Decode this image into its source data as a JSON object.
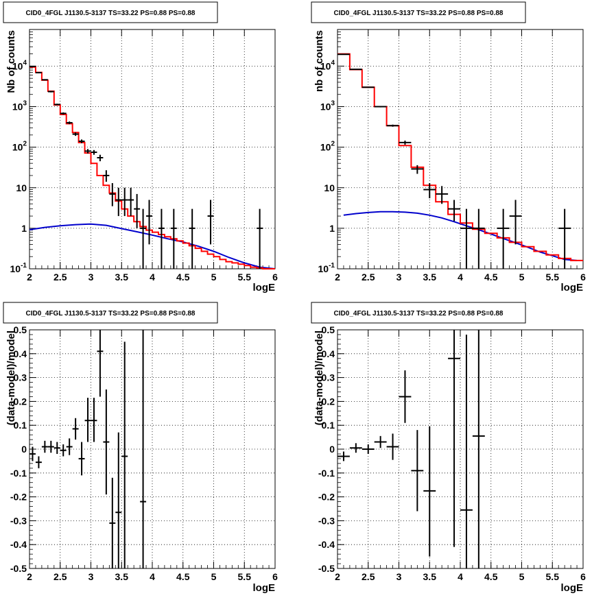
{
  "panels": {
    "tl": {
      "title": "CID0_4FGL J1130.5-3137 TS=33.22 PS=0.88 PS=0.88",
      "xlabel": "logE",
      "ylabel": "Nb of counts"
    },
    "tr": {
      "title": "CID0_4FGL J1130.5-3137 TS=33.22 PS=0.88 PS=0.88",
      "xlabel": "logE",
      "ylabel": "nb of counts"
    },
    "bl": {
      "title": "CID0_4FGL J1130.5-3137 TS=33.22 PS=0.88 PS=0.88",
      "xlabel": "logE",
      "ylabel": "(data-model)/model"
    },
    "br": {
      "title": "CID0_4FGL J1130.5-3137 TS=33.22 PS=0.88 PS=0.88",
      "xlabel": "logE",
      "ylabel": "(data-model)/model"
    }
  },
  "colors": {
    "data": "#000000",
    "model": "#ff0000",
    "background": "#0000cc",
    "grid": "#000000"
  },
  "chart_data": [
    {
      "id": "tl",
      "type": "line",
      "title": "CID0_4FGL J1130.5-3137 TS=33.22 PS=0.88 PS=0.88",
      "xlabel": "logE",
      "ylabel": "Nb of counts",
      "xlim": [
        2,
        6
      ],
      "ylim": [
        0.1,
        80000
      ],
      "ylog": true,
      "grid": true,
      "xticks": [
        2,
        2.5,
        3,
        3.5,
        4,
        4.5,
        5,
        5.5,
        6
      ],
      "yticks": [
        {
          "v": 0.1,
          "base": "10",
          "exp": "-1"
        },
        {
          "v": 1,
          "label": "1"
        },
        {
          "v": 10,
          "label": "10"
        },
        {
          "v": 100,
          "base": "10",
          "exp": "2"
        },
        {
          "v": 1000,
          "base": "10",
          "exp": "3"
        },
        {
          "v": 10000,
          "base": "10",
          "exp": "4"
        }
      ],
      "binwidth": 0.1,
      "model_x": [
        2.05,
        2.15,
        2.25,
        2.35,
        2.45,
        2.55,
        2.65,
        2.75,
        2.85,
        2.95,
        3.05,
        3.15,
        3.25,
        3.35,
        3.45,
        3.55,
        3.65,
        3.75,
        3.85,
        3.95,
        4.05,
        4.15,
        4.25,
        4.35,
        4.45,
        4.55,
        4.65,
        4.75,
        4.85,
        4.95,
        5.05,
        5.15,
        5.25,
        5.35,
        5.45,
        5.55,
        5.65,
        5.75,
        5.85,
        5.95
      ],
      "model": [
        9500,
        7000,
        4500,
        2400,
        1100,
        640,
        380,
        230,
        130,
        72,
        40,
        20,
        11.5,
        7.4,
        4.7,
        3.0,
        2.0,
        1.45,
        1.1,
        0.9,
        0.8,
        0.7,
        0.62,
        0.55,
        0.49,
        0.43,
        0.37,
        0.32,
        0.27,
        0.23,
        0.2,
        0.17,
        0.15,
        0.14,
        0.13,
        0.12,
        0.11,
        0.105,
        0.1,
        0.1
      ],
      "background_x": [
        2.0,
        2.25,
        2.5,
        2.75,
        3.0,
        3.25,
        3.5,
        3.75,
        4.0,
        4.25,
        4.5,
        4.75,
        5.0,
        5.25,
        5.5,
        5.75,
        6.0
      ],
      "background": [
        0.92,
        1.05,
        1.15,
        1.23,
        1.27,
        1.18,
        0.98,
        0.82,
        0.68,
        0.55,
        0.46,
        0.36,
        0.27,
        0.19,
        0.14,
        0.11,
        0.1
      ],
      "data_x": [
        2.05,
        2.15,
        2.25,
        2.35,
        2.45,
        2.55,
        2.65,
        2.75,
        2.85,
        2.95,
        3.05,
        3.15,
        3.25,
        3.35,
        3.45,
        3.55,
        3.65,
        3.75,
        3.85,
        3.95,
        4.15,
        4.35,
        4.65,
        4.95,
        5.75
      ],
      "data": [
        9800,
        6900,
        4600,
        2350,
        1130,
        680,
        400,
        210,
        140,
        80,
        75,
        55,
        20,
        7,
        5,
        5,
        5,
        3,
        1,
        2,
        1,
        1,
        1,
        2,
        1
      ],
      "data_low": [
        9600,
        6700,
        4450,
        2250,
        1080,
        640,
        370,
        190,
        125,
        70,
        65,
        45,
        14,
        3.5,
        2,
        2,
        2,
        1,
        0.1,
        0.4,
        0.1,
        0.1,
        0.1,
        0.4,
        0.1
      ],
      "data_high": [
        10000,
        7100,
        4750,
        2450,
        1180,
        720,
        430,
        230,
        155,
        90,
        85,
        65,
        27,
        13,
        10,
        10,
        10,
        7,
        3,
        5,
        3,
        3,
        3,
        5,
        3
      ]
    },
    {
      "id": "tr",
      "type": "line",
      "title": "CID0_4FGL J1130.5-3137 TS=33.22 PS=0.88 PS=0.88",
      "xlabel": "logE",
      "ylabel": "nb of counts",
      "xlim": [
        2,
        6
      ],
      "ylim": [
        0.1,
        80000
      ],
      "ylog": true,
      "grid": true,
      "xticks": [
        2,
        2.5,
        3,
        3.5,
        4,
        4.5,
        5,
        5.5,
        6
      ],
      "yticks": [
        {
          "v": 0.1,
          "base": "10",
          "exp": "-1"
        },
        {
          "v": 1,
          "label": "1"
        },
        {
          "v": 10,
          "label": "10"
        },
        {
          "v": 100,
          "base": "10",
          "exp": "2"
        },
        {
          "v": 1000,
          "base": "10",
          "exp": "3"
        },
        {
          "v": 10000,
          "base": "10",
          "exp": "4"
        }
      ],
      "binwidth": 0.2,
      "model_x": [
        2.1,
        2.3,
        2.5,
        2.7,
        2.9,
        3.1,
        3.3,
        3.5,
        3.7,
        3.9,
        4.1,
        4.3,
        4.5,
        4.7,
        4.9,
        5.1,
        5.3,
        5.5,
        5.7,
        5.9
      ],
      "model": [
        20000,
        8200,
        3000,
        1000,
        340,
        110,
        32,
        11.5,
        4.5,
        2.2,
        1.35,
        0.95,
        0.75,
        0.58,
        0.45,
        0.35,
        0.27,
        0.22,
        0.18,
        0.16
      ],
      "background_x": [
        2.1,
        2.3,
        2.5,
        2.7,
        2.9,
        3.1,
        3.3,
        3.5,
        3.7,
        3.9,
        4.1,
        4.3,
        4.5,
        4.7,
        4.9,
        5.1,
        5.3,
        5.5,
        5.7,
        5.9
      ],
      "background": [
        2.1,
        2.3,
        2.45,
        2.55,
        2.55,
        2.5,
        2.35,
        2.1,
        1.8,
        1.45,
        1.15,
        0.92,
        0.72,
        0.56,
        0.44,
        0.34,
        0.26,
        0.21,
        0.17,
        0.16
      ],
      "data_x": [
        2.1,
        2.3,
        2.5,
        2.7,
        2.9,
        3.1,
        3.3,
        3.5,
        3.7,
        3.9,
        4.1,
        4.3,
        4.7,
        4.9,
        5.7
      ],
      "data": [
        19500,
        8300,
        3000,
        1000,
        340,
        130,
        29,
        9,
        7,
        3,
        1,
        1,
        1,
        2,
        1
      ],
      "data_low": [
        19200,
        8100,
        2900,
        960,
        320,
        115,
        22,
        5.5,
        4,
        1.5,
        0.1,
        0.1,
        0.1,
        0.4,
        0.1
      ],
      "data_high": [
        19800,
        8500,
        3100,
        1040,
        360,
        145,
        36,
        13,
        11,
        5,
        3,
        3,
        3,
        5,
        3
      ]
    },
    {
      "id": "bl",
      "type": "scatter",
      "title": "CID0_4FGL J1130.5-3137 TS=33.22 PS=0.88 PS=0.88",
      "xlabel": "logE",
      "ylabel": "(data-model)/model",
      "xlim": [
        2,
        6
      ],
      "ylim": [
        -0.5,
        0.5
      ],
      "grid": true,
      "xticks": [
        2,
        2.5,
        3,
        3.5,
        4,
        4.5,
        5,
        5.5,
        6
      ],
      "yticks": [
        -0.5,
        -0.4,
        -0.3,
        -0.2,
        -0.1,
        0,
        0.1,
        0.2,
        0.3,
        0.4,
        0.5
      ],
      "binwidth": 0.1,
      "x": [
        2.05,
        2.15,
        2.25,
        2.35,
        2.45,
        2.55,
        2.65,
        2.75,
        2.85,
        2.95,
        3.05,
        3.15,
        3.25,
        3.35,
        3.45,
        3.55,
        3.85
      ],
      "y": [
        -0.02,
        -0.055,
        0.01,
        0.01,
        0.005,
        -0.005,
        0.01,
        0.085,
        -0.04,
        0.12,
        0.12,
        0.41,
        0.03,
        -0.31,
        -0.265,
        -0.03,
        -0.22
      ],
      "yerr_low": [
        -0.05,
        -0.08,
        -0.015,
        -0.015,
        -0.02,
        -0.03,
        -0.025,
        0.04,
        -0.11,
        0.03,
        0.03,
        0.22,
        -0.19,
        -0.5,
        -0.5,
        -0.5,
        -0.5
      ],
      "yerr_high": [
        0.01,
        -0.03,
        0.035,
        0.035,
        0.03,
        0.02,
        0.045,
        0.13,
        0.03,
        0.215,
        0.215,
        0.5,
        0.25,
        -0.12,
        0.07,
        0.45,
        0.5
      ]
    },
    {
      "id": "br",
      "type": "scatter",
      "title": "CID0_4FGL J1130.5-3137 TS=33.22 PS=0.88 PS=0.88",
      "xlabel": "logE",
      "ylabel": "(data-model)/model",
      "xlim": [
        2,
        6
      ],
      "ylim": [
        -0.5,
        0.5
      ],
      "grid": true,
      "xticks": [
        2,
        2.5,
        3,
        3.5,
        4,
        4.5,
        5,
        5.5,
        6
      ],
      "yticks": [
        -0.5,
        -0.4,
        -0.3,
        -0.2,
        -0.1,
        0,
        0.1,
        0.2,
        0.3,
        0.4,
        0.5
      ],
      "binwidth": 0.2,
      "x": [
        2.1,
        2.3,
        2.5,
        2.7,
        2.9,
        3.1,
        3.3,
        3.5,
        3.9,
        4.1,
        4.3
      ],
      "y": [
        -0.03,
        0.005,
        0.0,
        0.03,
        0.01,
        0.22,
        -0.09,
        -0.175,
        0.38,
        -0.255,
        0.055
      ],
      "yerr_low": [
        -0.05,
        -0.015,
        -0.02,
        0.005,
        -0.045,
        0.11,
        -0.26,
        -0.45,
        -0.41,
        -0.5,
        -0.5
      ],
      "yerr_high": [
        -0.01,
        0.025,
        0.02,
        0.055,
        0.065,
        0.33,
        0.08,
        0.095,
        0.5,
        0.48,
        0.5
      ]
    }
  ]
}
